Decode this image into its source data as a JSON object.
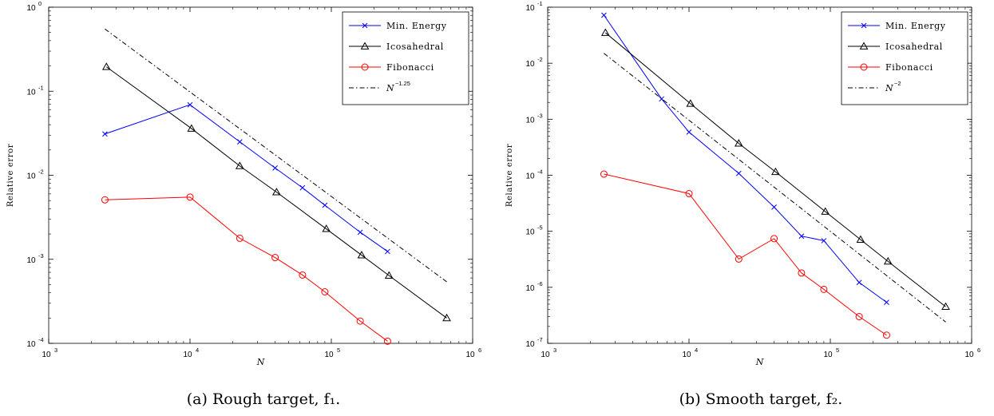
{
  "chart_data": [
    {
      "type": "line",
      "caption": "(a) Rough target, f₁.",
      "xlabel": "N",
      "ylabel": "Relative error",
      "xscale": "log",
      "yscale": "log",
      "xlim": [
        1000,
        1000000
      ],
      "ylim": [
        0.0001,
        1
      ],
      "legend_position": "top-right",
      "grid": false,
      "series": [
        {
          "name": "Min. Energy",
          "color": "#0000ff",
          "marker": "x",
          "dash": "solid",
          "x": [
            2500,
            10000,
            22500,
            40000,
            62500,
            90000,
            160000,
            250000
          ],
          "y": [
            0.031,
            0.069,
            0.025,
            0.0122,
            0.0071,
            0.0044,
            0.0021,
            0.00124
          ]
        },
        {
          "name": "Icosahedral",
          "color": "#000000",
          "marker": "triangle",
          "dash": "solid",
          "x": [
            2562,
            10242,
            22500,
            40962,
            92162,
            163842,
            256002,
            655362
          ],
          "y": [
            0.195,
            0.036,
            0.0129,
            0.0063,
            0.0023,
            0.00112,
            0.00064,
            0.0002
          ]
        },
        {
          "name": "Fibonacci",
          "color": "#ff0000",
          "marker": "circle",
          "dash": "solid",
          "x": [
            2500,
            10000,
            22500,
            40000,
            62500,
            90000,
            160000,
            250000
          ],
          "y": [
            0.0051,
            0.0055,
            0.00178,
            0.00105,
            0.00065,
            0.00041,
            0.000184,
            0.000106
          ]
        },
        {
          "name": "N^{-1.25}",
          "legend_base": "N",
          "legend_exp": "−1.25",
          "color": "#000000",
          "marker": "none",
          "dash": "dashdot",
          "x": [
            2500,
            655360
          ],
          "y": [
            0.55,
            0.00054
          ]
        }
      ]
    },
    {
      "type": "line",
      "caption": "(b) Smooth target, f₂.",
      "xlabel": "N",
      "ylabel": "Relative error",
      "xscale": "log",
      "yscale": "log",
      "xlim": [
        1000,
        1000000
      ],
      "ylim": [
        1e-07,
        0.1
      ],
      "legend_position": "top-right",
      "grid": false,
      "series": [
        {
          "name": "Min. Energy",
          "color": "#0000ff",
          "marker": "x",
          "dash": "solid",
          "x": [
            2500,
            6400,
            10000,
            22500,
            40000,
            62500,
            90000,
            160000,
            250000
          ],
          "y": [
            0.072,
            0.0023,
            0.00059,
            0.000108,
            2.7e-05,
            8.2e-06,
            6.8e-06,
            1.22e-06,
            5.4e-07
          ]
        },
        {
          "name": "Icosahedral",
          "color": "#000000",
          "marker": "triangle",
          "dash": "solid",
          "x": [
            2562,
            10242,
            22500,
            40962,
            92162,
            163842,
            256002,
            655362
          ],
          "y": [
            0.035,
            0.0019,
            0.00037,
            0.000115,
            2.25e-05,
            7.1e-06,
            2.9e-06,
            4.5e-07
          ]
        },
        {
          "name": "Fibonacci",
          "color": "#ff0000",
          "marker": "circle",
          "dash": "solid",
          "x": [
            2500,
            10000,
            22500,
            40000,
            62500,
            90000,
            160000,
            250000
          ],
          "y": [
            0.000105,
            4.7e-05,
            3.2e-06,
            7.4e-06,
            1.8e-06,
            9.2e-07,
            3e-07,
            1.4e-07
          ]
        },
        {
          "name": "N^{-2}",
          "legend_base": "N",
          "legend_exp": "−2",
          "color": "#000000",
          "marker": "none",
          "dash": "dashdot",
          "x": [
            2500,
            655360
          ],
          "y": [
            0.015,
            2.4e-07
          ]
        }
      ]
    }
  ]
}
